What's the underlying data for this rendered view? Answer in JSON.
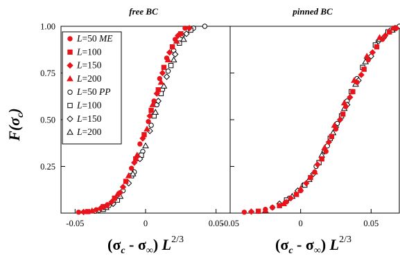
{
  "chart_data": [
    {
      "type": "scatter",
      "title": "free BC",
      "ylabel": "F(σ_c)",
      "xlabel": "(σ_c - σ_∞) L^{2/3}",
      "xlim": [
        -0.06,
        0.06
      ],
      "ylim": [
        0.0,
        1.0
      ],
      "x_ticks": [
        "-0.05",
        "0",
        "0.05"
      ],
      "y_ticks": [
        "0.25",
        "0.50",
        "0.75",
        "1.00"
      ],
      "grid": false,
      "legend_position": "top-left",
      "legend": [
        {
          "label": "L=50 ME",
          "marker": "circle-filled",
          "color": "#e8141b"
        },
        {
          "label": "L=100",
          "marker": "square-filled",
          "color": "#e8141b"
        },
        {
          "label": "L=150",
          "marker": "diamond-filled",
          "color": "#e8141b"
        },
        {
          "label": "L=200",
          "marker": "triangle-filled",
          "color": "#e8141b"
        },
        {
          "label": "L=50 PP",
          "marker": "circle-open",
          "color": "#000000"
        },
        {
          "label": "L=100",
          "marker": "square-open",
          "color": "#000000"
        },
        {
          "label": "L=150",
          "marker": "diamond-open",
          "color": "#000000"
        },
        {
          "label": "L=200",
          "marker": "triangle-open",
          "color": "#000000"
        }
      ],
      "curve": {
        "center": 0.007,
        "width": 0.0085
      },
      "x_range_of_points": [
        -0.05,
        0.044
      ],
      "series": [
        {
          "name": "L=50 ME",
          "marker": "circle-filled",
          "color": "#e8141b",
          "x": [
            -0.0475,
            -0.035,
            -0.027,
            -0.018,
            -0.01,
            -0.004,
            0.002,
            0.006,
            0.01,
            0.015,
            0.021,
            0.028
          ],
          "y": [
            0.005,
            0.018,
            0.045,
            0.11,
            0.24,
            0.37,
            0.49,
            0.6,
            0.72,
            0.83,
            0.93,
            0.99
          ]
        },
        {
          "name": "L=100",
          "marker": "square-filled",
          "color": "#e8141b",
          "x": [
            -0.041,
            -0.03,
            -0.022,
            -0.014,
            -0.007,
            -0.001,
            0.004,
            0.009,
            0.013,
            0.019,
            0.025
          ],
          "y": [
            0.008,
            0.035,
            0.08,
            0.17,
            0.29,
            0.42,
            0.55,
            0.66,
            0.78,
            0.89,
            0.96
          ]
        },
        {
          "name": "L=150",
          "marker": "diamond-filled",
          "color": "#e8141b",
          "x": [
            -0.044,
            -0.032,
            -0.024,
            -0.016,
            -0.008,
            -0.002,
            0.003,
            0.008,
            0.012,
            0.017,
            0.023,
            0.031
          ],
          "y": [
            0.006,
            0.025,
            0.06,
            0.14,
            0.27,
            0.4,
            0.52,
            0.64,
            0.75,
            0.86,
            0.95,
            0.99
          ]
        },
        {
          "name": "L=200",
          "marker": "triangle-filled",
          "color": "#e8141b",
          "x": [
            -0.038,
            -0.028,
            -0.02,
            -0.012,
            -0.006,
            0.001,
            0.005,
            0.011,
            0.016,
            0.022
          ],
          "y": [
            0.012,
            0.04,
            0.1,
            0.2,
            0.31,
            0.45,
            0.58,
            0.7,
            0.82,
            0.92
          ]
        },
        {
          "name": "L=50 PP",
          "marker": "circle-open",
          "color": "#000000",
          "x": [
            -0.036,
            -0.026,
            -0.016,
            -0.008,
            -0.002,
            0.004,
            0.008,
            0.012,
            0.016,
            0.02,
            0.026,
            0.034,
            0.042
          ],
          "y": [
            0.01,
            0.04,
            0.12,
            0.22,
            0.33,
            0.47,
            0.58,
            0.66,
            0.76,
            0.87,
            0.95,
            0.99,
            1.0
          ]
        },
        {
          "name": "L=100",
          "marker": "square-open",
          "color": "#000000",
          "x": [
            -0.03,
            -0.02,
            -0.01,
            -0.003,
            0.006,
            0.011,
            0.018,
            0.024,
            0.032
          ],
          "y": [
            0.02,
            0.07,
            0.2,
            0.31,
            0.52,
            0.64,
            0.79,
            0.91,
            0.98
          ]
        },
        {
          "name": "L=150",
          "marker": "diamond-open",
          "color": "#000000",
          "x": [
            -0.033,
            -0.023,
            -0.012,
            -0.004,
            0.003,
            0.009,
            0.015,
            0.021,
            0.029
          ],
          "y": [
            0.015,
            0.05,
            0.16,
            0.29,
            0.44,
            0.6,
            0.73,
            0.85,
            0.96
          ]
        },
        {
          "name": "L=200",
          "marker": "triangle-open",
          "color": "#000000",
          "x": [
            -0.028,
            -0.018,
            -0.009,
            0.0,
            0.007,
            0.013,
            0.02,
            0.027
          ],
          "y": [
            0.03,
            0.09,
            0.21,
            0.36,
            0.54,
            0.68,
            0.82,
            0.93
          ]
        }
      ]
    },
    {
      "type": "scatter",
      "title": "pinned BC",
      "xlabel": "(σ_c - σ_∞) L^{2/3}",
      "xlim": [
        -0.05,
        0.07
      ],
      "ylim": [
        0.0,
        1.0
      ],
      "x_ticks": [
        "-0.05",
        "0",
        "0.05"
      ],
      "grid": false,
      "series": [
        {
          "name": "L=50 ME",
          "marker": "circle-filled",
          "color": "#e8141b",
          "x": [
            -0.04,
            -0.025,
            -0.01,
            0.0,
            0.01,
            0.018,
            0.025,
            0.032,
            0.04,
            0.048,
            0.058,
            0.066
          ],
          "y": [
            0.005,
            0.02,
            0.06,
            0.12,
            0.22,
            0.33,
            0.45,
            0.57,
            0.7,
            0.82,
            0.93,
            0.99
          ]
        },
        {
          "name": "L=100",
          "marker": "square-filled",
          "color": "#e8141b",
          "x": [
            -0.03,
            -0.015,
            -0.003,
            0.007,
            0.015,
            0.022,
            0.03,
            0.037,
            0.045,
            0.054,
            0.063
          ],
          "y": [
            0.01,
            0.04,
            0.1,
            0.19,
            0.29,
            0.41,
            0.53,
            0.65,
            0.77,
            0.89,
            0.97
          ]
        },
        {
          "name": "L=150",
          "marker": "diamond-filled",
          "color": "#e8141b",
          "x": [
            -0.035,
            -0.02,
            -0.007,
            0.004,
            0.012,
            0.02,
            0.028,
            0.035,
            0.043,
            0.051,
            0.06,
            0.068
          ],
          "y": [
            0.008,
            0.03,
            0.08,
            0.16,
            0.26,
            0.38,
            0.5,
            0.62,
            0.74,
            0.86,
            0.95,
            0.99
          ]
        },
        {
          "name": "L=200",
          "marker": "triangle-filled",
          "color": "#e8141b",
          "x": [
            -0.025,
            -0.012,
            0.0,
            0.01,
            0.017,
            0.024,
            0.031,
            0.038,
            0.047,
            0.056
          ],
          "y": [
            0.015,
            0.05,
            0.13,
            0.22,
            0.35,
            0.47,
            0.59,
            0.71,
            0.84,
            0.94
          ]
        },
        {
          "name": "L=50 PP",
          "marker": "circle-open",
          "color": "#000000",
          "x": [
            -0.02,
            -0.008,
            0.002,
            0.011,
            0.019,
            0.026,
            0.033,
            0.04,
            0.047,
            0.055,
            0.064,
            0.07
          ],
          "y": [
            0.03,
            0.08,
            0.15,
            0.25,
            0.36,
            0.48,
            0.6,
            0.72,
            0.83,
            0.92,
            0.98,
            1.0
          ]
        },
        {
          "name": "L=100",
          "marker": "square-open",
          "color": "#000000",
          "x": [
            -0.01,
            0.003,
            0.013,
            0.021,
            0.029,
            0.036,
            0.044,
            0.053,
            0.062
          ],
          "y": [
            0.07,
            0.15,
            0.27,
            0.4,
            0.52,
            0.65,
            0.78,
            0.9,
            0.97
          ]
        },
        {
          "name": "L=150",
          "marker": "diamond-open",
          "color": "#000000",
          "x": [
            -0.015,
            -0.002,
            0.009,
            0.017,
            0.025,
            0.033,
            0.041,
            0.05,
            0.059,
            0.067
          ],
          "y": [
            0.05,
            0.12,
            0.21,
            0.33,
            0.46,
            0.58,
            0.71,
            0.84,
            0.94,
            0.99
          ]
        },
        {
          "name": "L=200",
          "marker": "triangle-open",
          "color": "#000000",
          "x": [
            -0.006,
            0.006,
            0.015,
            0.023,
            0.031,
            0.039,
            0.046,
            0.056,
            0.065
          ],
          "y": [
            0.09,
            0.18,
            0.31,
            0.43,
            0.56,
            0.69,
            0.81,
            0.93,
            0.98
          ]
        }
      ]
    }
  ]
}
